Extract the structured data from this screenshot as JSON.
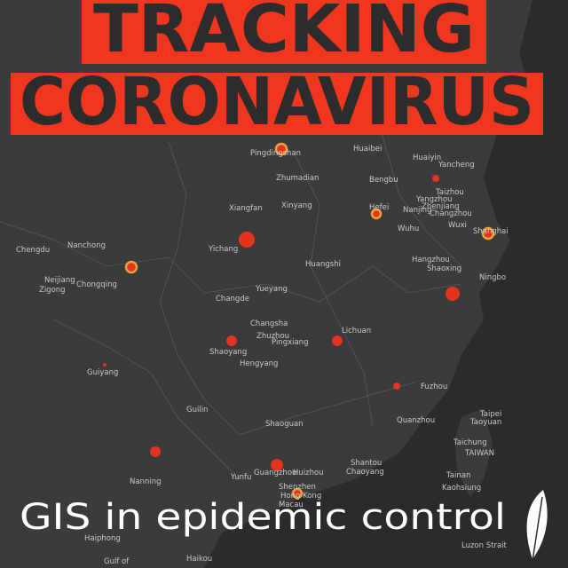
{
  "title": {
    "line1": "TRACKING",
    "line2": "CORONAVIRUS"
  },
  "caption": "GIS in epidemic control",
  "places": [
    "Chengdu",
    "Nanchong",
    "Chongqing",
    "Neijiang",
    "Zigong",
    "Guiyang",
    "Guilin",
    "Nanning",
    "Haiphong",
    "Haikou",
    "Yichang",
    "Xiangfan",
    "Xinyang",
    "Zhumadian",
    "Pingdingshan",
    "Huangshi",
    "Changde",
    "Yueyang",
    "Changsha",
    "Zhuzhou",
    "Pingxiang",
    "Shaoyang",
    "Hengyang",
    "Lichuan",
    "Shaoguan",
    "Guangzhou",
    "Huizhou",
    "Shenzhen",
    "Hong Kong",
    "Macau",
    "Yunfu",
    "Shantou",
    "Chaoyang",
    "Quanzhou",
    "Fuzhou",
    "Taipei",
    "Taoyuan",
    "Taichung",
    "TAIWAN",
    "Tainan",
    "Kaohsiung",
    "Hangzhou",
    "Shaoxing",
    "Ningbo",
    "Shanghai",
    "Wuxi",
    "Changzhou",
    "Nanjing",
    "Wuhu",
    "Hefei",
    "Bengbu",
    "Huaibei",
    "Huaiyin",
    "Yancheng",
    "Taizhou",
    "Yangzhou",
    "Zhenjiang",
    "Luzon Strait",
    "Gulf of"
  ]
}
